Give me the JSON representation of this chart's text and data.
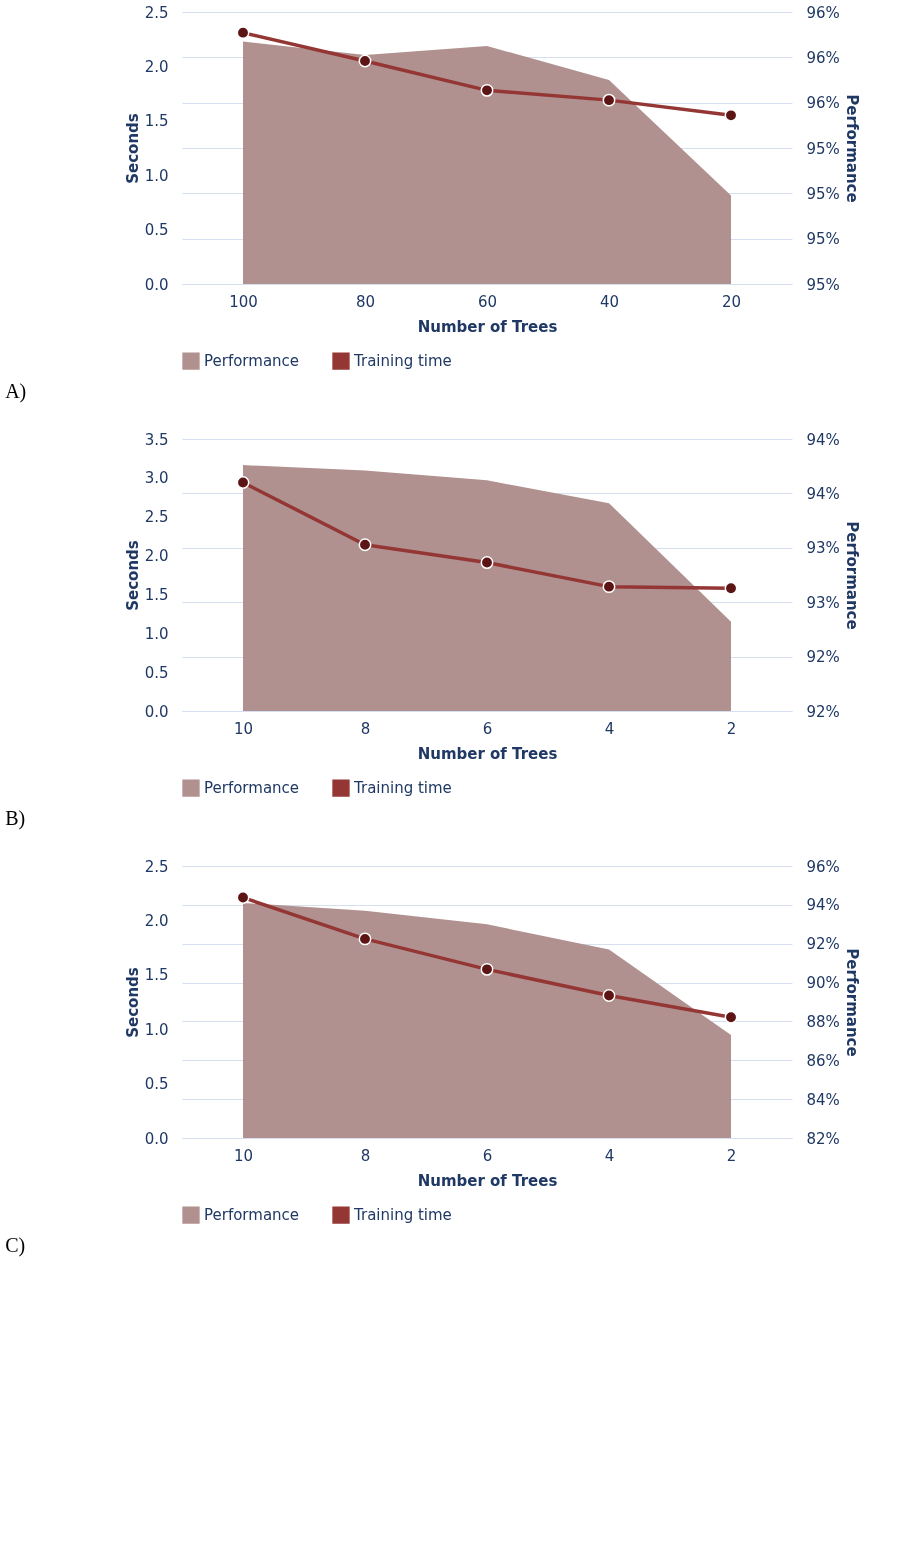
{
  "chart_data": [
    {
      "type": "area",
      "title": "A)",
      "categories": [
        "100",
        "80",
        "60",
        "40",
        "20"
      ],
      "xlabel": "Number of Trees",
      "ylabel": "Seconds",
      "y2label": "Performance",
      "ylim": [
        0,
        2.5
      ],
      "yticks": [
        {
          "value": 0,
          "label": "0.0"
        },
        0.5,
        {
          "value": 1,
          "label": "1.0"
        },
        1.5,
        {
          "value": 2,
          "label": "2.0"
        },
        2.5
      ],
      "y2lim": [
        94.8,
        96.0
      ],
      "y2ticks": [
        {
          "value": 94.8,
          "label": "95%"
        },
        {
          "value": 95.0,
          "label": "95%"
        },
        {
          "value": 95.2,
          "label": "95%"
        },
        {
          "value": 95.4,
          "label": "95%"
        },
        {
          "value": 95.6,
          "label": "96%"
        },
        {
          "value": 95.8,
          "label": "96%"
        },
        {
          "value": 96.0,
          "label": "96%"
        }
      ],
      "series": [
        {
          "name": "Performance",
          "axis": "y2",
          "color": "#b09190",
          "values": [
            95.87,
            95.81,
            95.85,
            95.7,
            95.19
          ]
        },
        {
          "name": "Training time",
          "type": "line",
          "marker": "circle",
          "color": "#943634",
          "values": [
            2.31,
            2.05,
            1.78,
            1.69,
            1.55
          ]
        }
      ],
      "grid": "y",
      "legend": "bottom"
    },
    {
      "type": "area",
      "title": "B)",
      "categories": [
        "10",
        "8",
        "6",
        "4",
        "2"
      ],
      "xlabel": "Number of Trees",
      "ylabel": "Seconds",
      "y2label": "Performance",
      "ylim": [
        0,
        3.5
      ],
      "yticks": [
        {
          "value": 0,
          "label": "0.0"
        },
        0.5,
        {
          "value": 1,
          "label": "1.0"
        },
        1.5,
        {
          "value": 2,
          "label": "2.0"
        },
        2.5,
        {
          "value": 3,
          "label": "3.0"
        },
        3.5
      ],
      "y2lim": [
        91.5,
        94.0
      ],
      "y2ticks": [
        {
          "value": 91.5,
          "label": "92%"
        },
        {
          "value": 92.0,
          "label": "92%"
        },
        {
          "value": 92.5,
          "label": "93%"
        },
        {
          "value": 93.0,
          "label": "93%"
        },
        {
          "value": 93.5,
          "label": "94%"
        },
        {
          "value": 94.0,
          "label": "94%"
        }
      ],
      "series": [
        {
          "name": "Performance",
          "axis": "y2",
          "color": "#b09190",
          "values": [
            93.76,
            93.71,
            93.62,
            93.41,
            92.32
          ]
        },
        {
          "name": "Training time",
          "type": "line",
          "marker": "circle",
          "color": "#943634",
          "values": [
            2.94,
            2.14,
            1.91,
            1.6,
            1.58
          ]
        }
      ],
      "grid": "y",
      "legend": "bottom"
    },
    {
      "type": "area",
      "title": "C)",
      "categories": [
        "10",
        "8",
        "6",
        "4",
        "2"
      ],
      "xlabel": "Number of Trees",
      "ylabel": "Seconds",
      "y2label": "Performance",
      "ylim": [
        0,
        2.5
      ],
      "yticks": [
        {
          "value": 0,
          "label": "0.0"
        },
        0.5,
        {
          "value": 1,
          "label": "1.0"
        },
        1.5,
        {
          "value": 2,
          "label": "2.0"
        },
        2.5
      ],
      "y2lim": [
        82,
        96
      ],
      "y2ticks": [
        {
          "value": 82,
          "label": "82%"
        },
        {
          "value": 84,
          "label": "84%"
        },
        {
          "value": 86,
          "label": "86%"
        },
        {
          "value": 88,
          "label": "88%"
        },
        {
          "value": 90,
          "label": "90%"
        },
        {
          "value": 92,
          "label": "92%"
        },
        {
          "value": 94,
          "label": "94%"
        },
        {
          "value": 96,
          "label": "96%"
        }
      ],
      "series": [
        {
          "name": "Performance",
          "axis": "y2",
          "color": "#b09190",
          "values": [
            94.1,
            93.7,
            93.0,
            91.7,
            87.3
          ]
        },
        {
          "name": "Training time",
          "type": "line",
          "marker": "circle",
          "color": "#943634",
          "values": [
            2.21,
            1.83,
            1.55,
            1.31,
            1.11
          ]
        }
      ],
      "grid": "y",
      "legend": "bottom"
    }
  ]
}
